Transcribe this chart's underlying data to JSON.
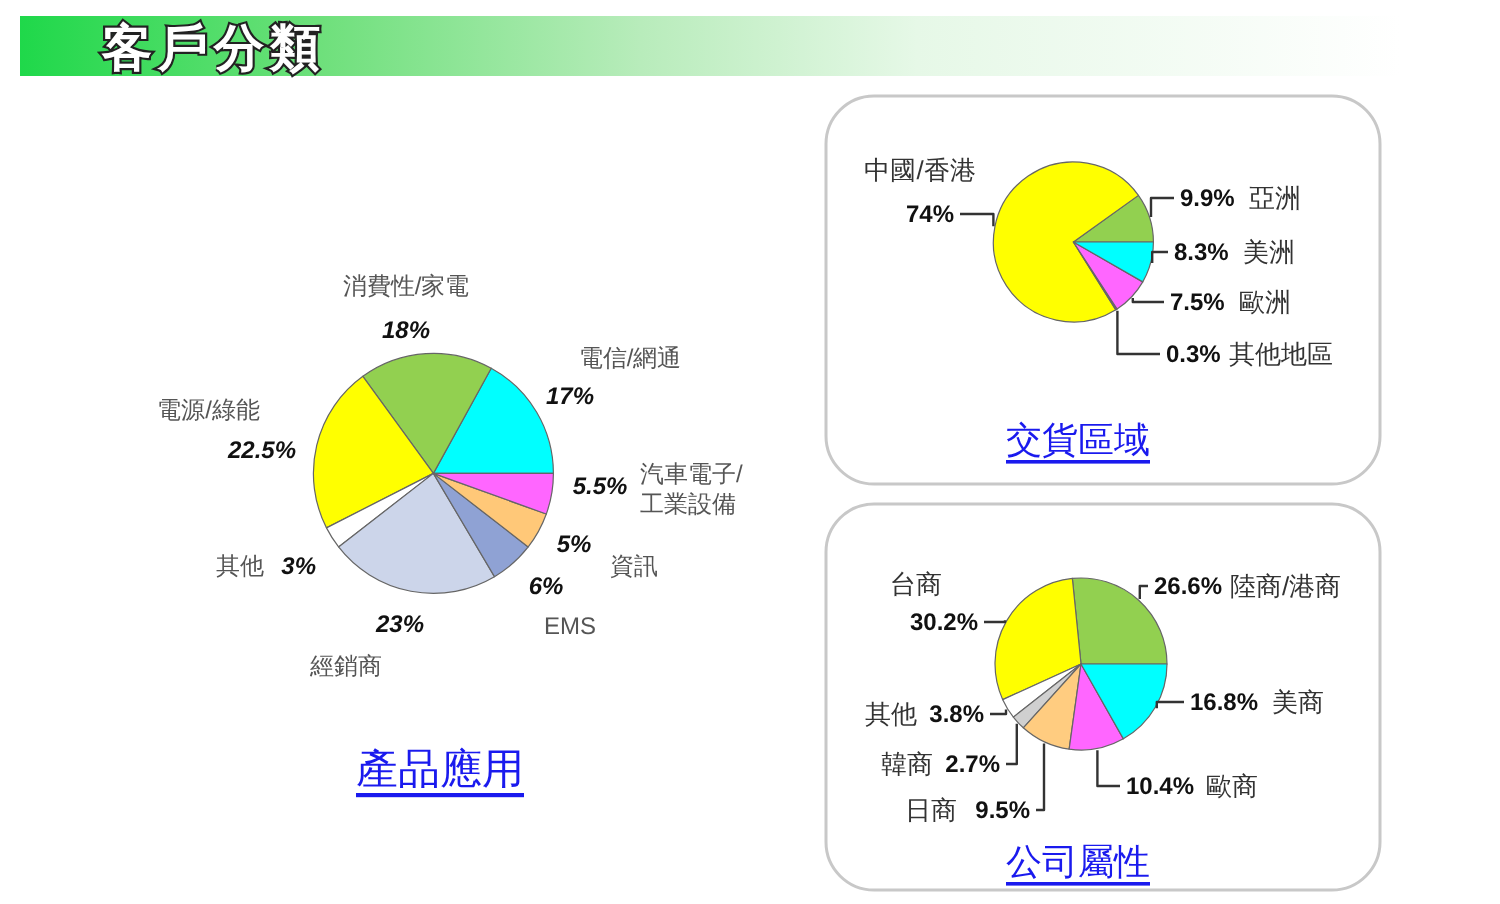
{
  "chart_data": [
    {
      "type": "other",
      "title": "客戶分類"
    },
    {
      "type": "pie",
      "title": "產品應用",
      "categories": [
        "電信/網通",
        "消費性/家電",
        "電源/綠能",
        "其他",
        "經銷商",
        "EMS",
        "資訊",
        "汽車電子/工業設備"
      ],
      "values": [
        17,
        18,
        22.5,
        3,
        23,
        6,
        5,
        5.5
      ],
      "value_labels": [
        "17%",
        "18%",
        "22.5%",
        "3%",
        "23%",
        "6%",
        "5%",
        "5.5%"
      ],
      "colors": [
        "#00ffff",
        "#92d050",
        "#ffff00",
        "#ffffff",
        "#ccd5ea",
        "#8fa2d4",
        "#ffc878",
        "#ff66ff"
      ]
    },
    {
      "type": "pie",
      "title": "交貨區域",
      "categories": [
        "亞洲",
        "中國/香港",
        "其他地區",
        "歐洲",
        "美洲"
      ],
      "values": [
        9.9,
        74,
        0.3,
        7.5,
        8.3
      ],
      "value_labels": [
        "9.9%",
        "74%",
        "0.3%",
        "7.5%",
        "8.3%"
      ],
      "colors": [
        "#92d050",
        "#ffff00",
        "#993399",
        "#ff66ff",
        "#00ffff"
      ]
    },
    {
      "type": "pie",
      "title": "公司屬性",
      "categories": [
        "陸商/港商",
        "台商",
        "其他",
        "韓商",
        "日商",
        "歐商",
        "美商"
      ],
      "values": [
        26.6,
        30.2,
        3.8,
        2.7,
        9.5,
        10.4,
        16.8
      ],
      "value_labels": [
        "26.6%",
        "30.2%",
        "3.8%",
        "2.7%",
        "9.5%",
        "10.4%",
        "16.8%"
      ],
      "colors": [
        "#92d050",
        "#ffff00",
        "#ffffff",
        "#d0d0d0",
        "#ffcc80",
        "#ff66ff",
        "#00ffff"
      ]
    }
  ]
}
